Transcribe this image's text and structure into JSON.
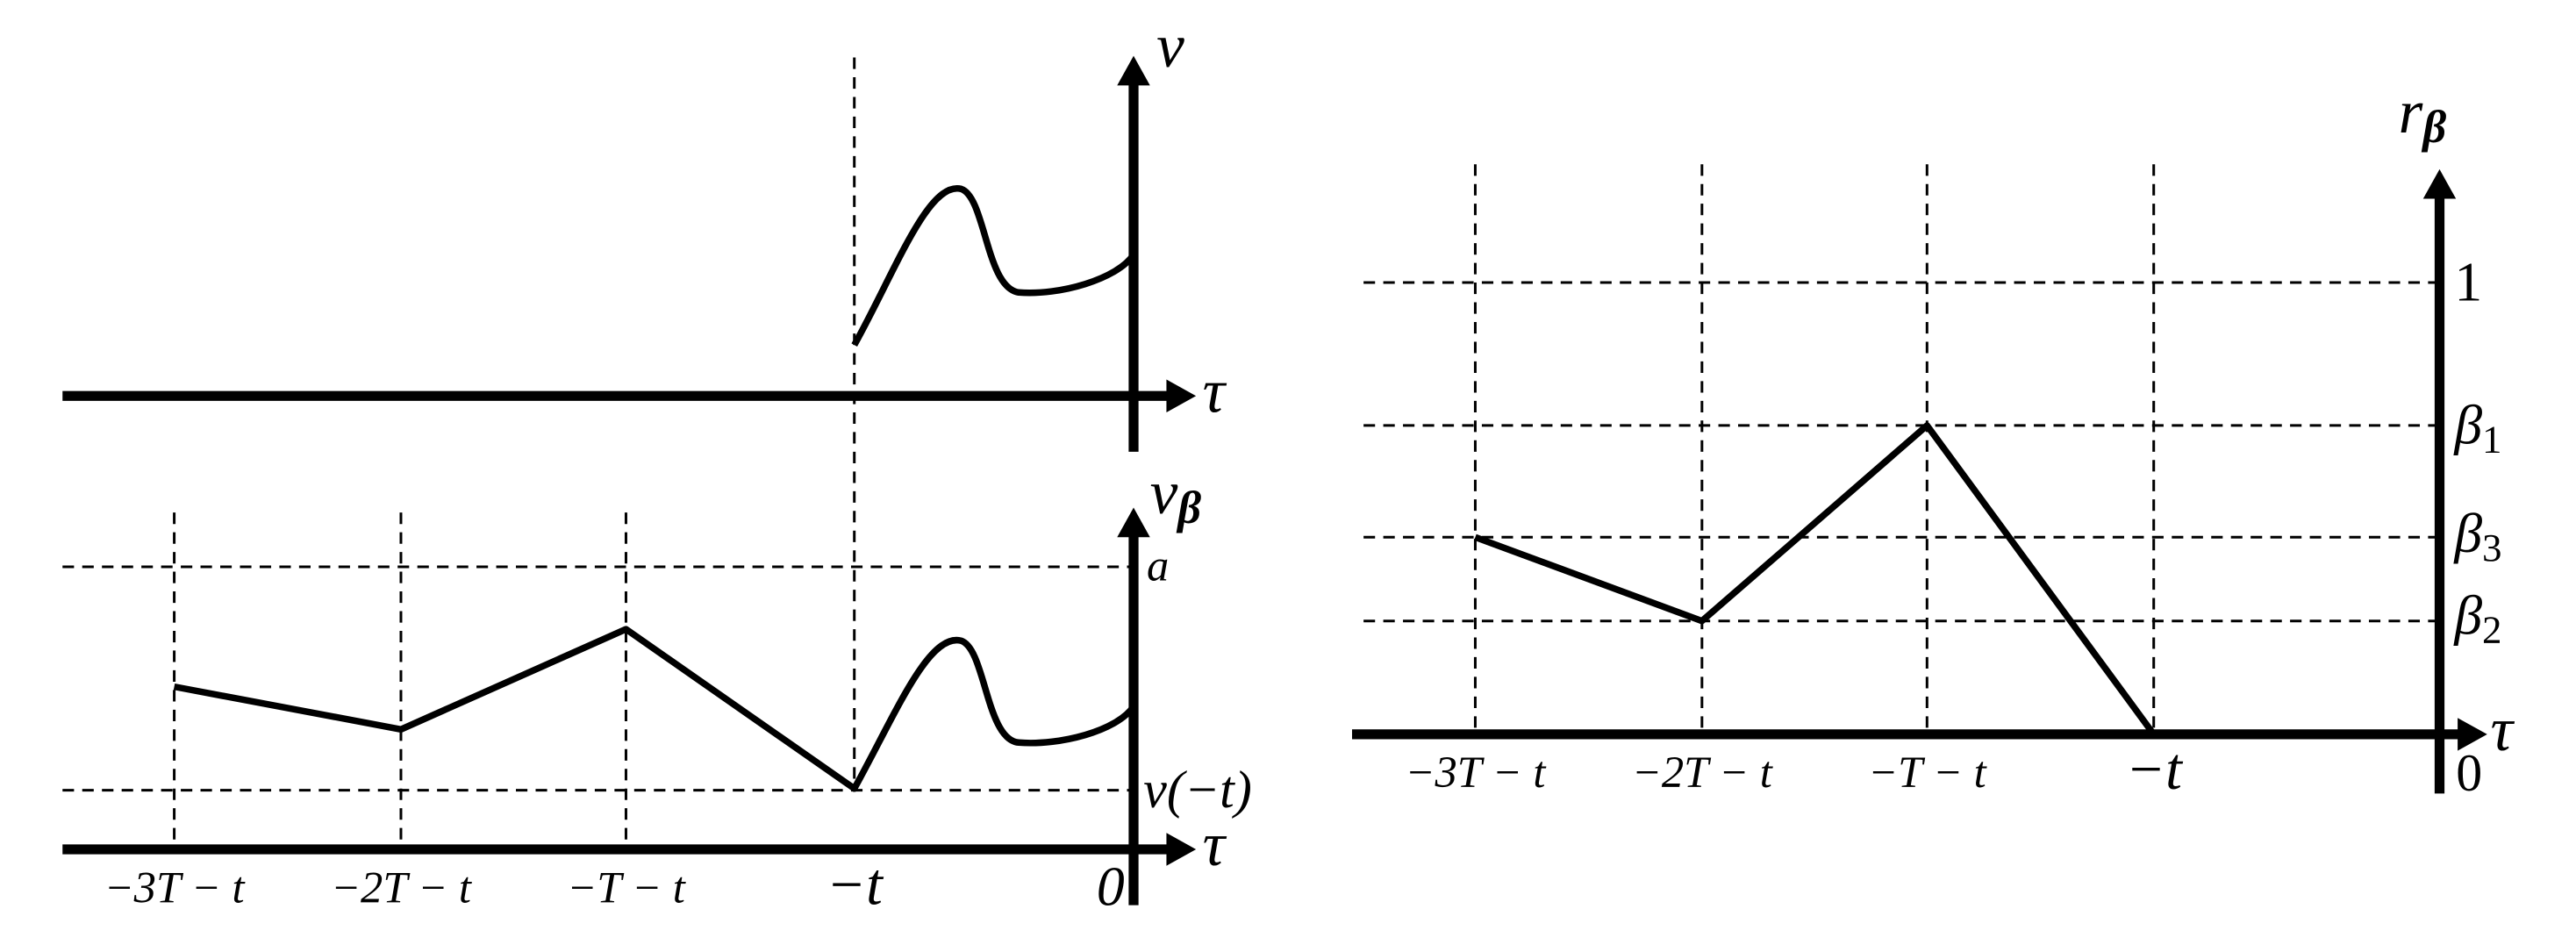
{
  "top_panel": {
    "y_label": "v",
    "x_label": "τ"
  },
  "bottom_left": {
    "y_label": {
      "base": "v",
      "sub": "β"
    },
    "x_label": "τ",
    "x_ticks": [
      "−3T − t",
      "−2T − t",
      "−T − t",
      "−t",
      "0"
    ],
    "y_ticks": [
      "a",
      "v(−t)"
    ]
  },
  "right": {
    "y_label": {
      "base": "r",
      "sub": "β"
    },
    "x_label": "τ",
    "x_ticks": [
      "−3T − t",
      "−2T − t",
      "−T − t",
      "−t",
      "0"
    ],
    "y_ticks": [
      "1",
      {
        "base": "β",
        "sub": "1"
      },
      {
        "base": "β",
        "sub": "3"
      },
      {
        "base": "β",
        "sub": "2"
      }
    ]
  }
}
